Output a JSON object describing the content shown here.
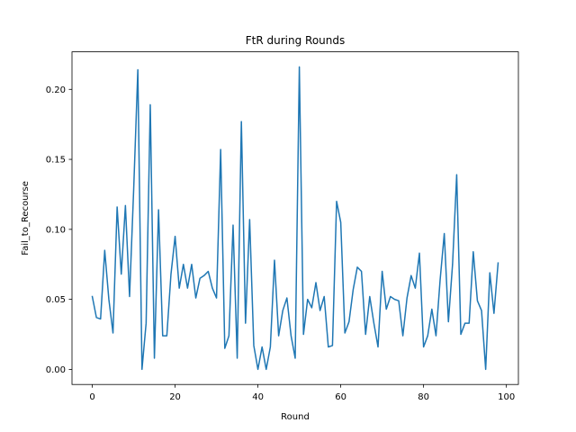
{
  "chart_data": {
    "type": "line",
    "title": "FtR during Rounds",
    "xlabel": "Round",
    "ylabel": "Fail_to_Recourse",
    "xlim": [
      -4.9,
      102.9
    ],
    "ylim": [
      -0.0108,
      0.2268
    ],
    "grid": false,
    "x_ticks": [
      0,
      20,
      40,
      60,
      80,
      100
    ],
    "x_tick_labels": [
      "0",
      "20",
      "40",
      "60",
      "80",
      "100"
    ],
    "y_ticks": [
      0.0,
      0.05,
      0.1,
      0.15,
      0.2
    ],
    "y_tick_labels": [
      "0.00",
      "0.05",
      "0.10",
      "0.15",
      "0.20"
    ],
    "series": [
      {
        "color": "#1f77b4",
        "x": [
          0,
          1,
          2,
          3,
          4,
          5,
          6,
          7,
          8,
          9,
          10,
          11,
          12,
          13,
          14,
          15,
          16,
          17,
          18,
          19,
          20,
          21,
          22,
          23,
          24,
          25,
          26,
          27,
          28,
          29,
          30,
          31,
          32,
          33,
          34,
          35,
          36,
          37,
          38,
          39,
          40,
          41,
          42,
          43,
          44,
          45,
          46,
          47,
          48,
          49,
          50,
          51,
          52,
          53,
          54,
          55,
          56,
          57,
          58,
          59,
          60,
          61,
          62,
          63,
          64,
          65,
          66,
          67,
          68,
          69,
          70,
          71,
          72,
          73,
          74,
          75,
          76,
          77,
          78,
          79,
          80,
          81,
          82,
          83,
          84,
          85,
          86,
          87,
          88,
          89,
          90,
          91,
          92,
          93,
          94,
          95,
          96,
          97,
          98
        ],
        "y": [
          0.052,
          0.037,
          0.036,
          0.085,
          0.05,
          0.026,
          0.116,
          0.068,
          0.117,
          0.052,
          0.129,
          0.214,
          0.0,
          0.033,
          0.189,
          0.008,
          0.114,
          0.024,
          0.024,
          0.068,
          0.095,
          0.058,
          0.075,
          0.058,
          0.075,
          0.051,
          0.065,
          0.067,
          0.07,
          0.058,
          0.051,
          0.157,
          0.015,
          0.024,
          0.103,
          0.008,
          0.177,
          0.033,
          0.107,
          0.017,
          0.0,
          0.016,
          0.0,
          0.016,
          0.078,
          0.024,
          0.042,
          0.051,
          0.024,
          0.008,
          0.216,
          0.025,
          0.05,
          0.044,
          0.062,
          0.042,
          0.052,
          0.016,
          0.017,
          0.12,
          0.105,
          0.026,
          0.034,
          0.057,
          0.073,
          0.07,
          0.025,
          0.052,
          0.033,
          0.016,
          0.07,
          0.043,
          0.052,
          0.05,
          0.049,
          0.024,
          0.051,
          0.067,
          0.058,
          0.083,
          0.016,
          0.024,
          0.043,
          0.024,
          0.064,
          0.097,
          0.034,
          0.075,
          0.139,
          0.025,
          0.033,
          0.033,
          0.084,
          0.049,
          0.042,
          0.0,
          0.069,
          0.04,
          0.076
        ]
      }
    ]
  }
}
